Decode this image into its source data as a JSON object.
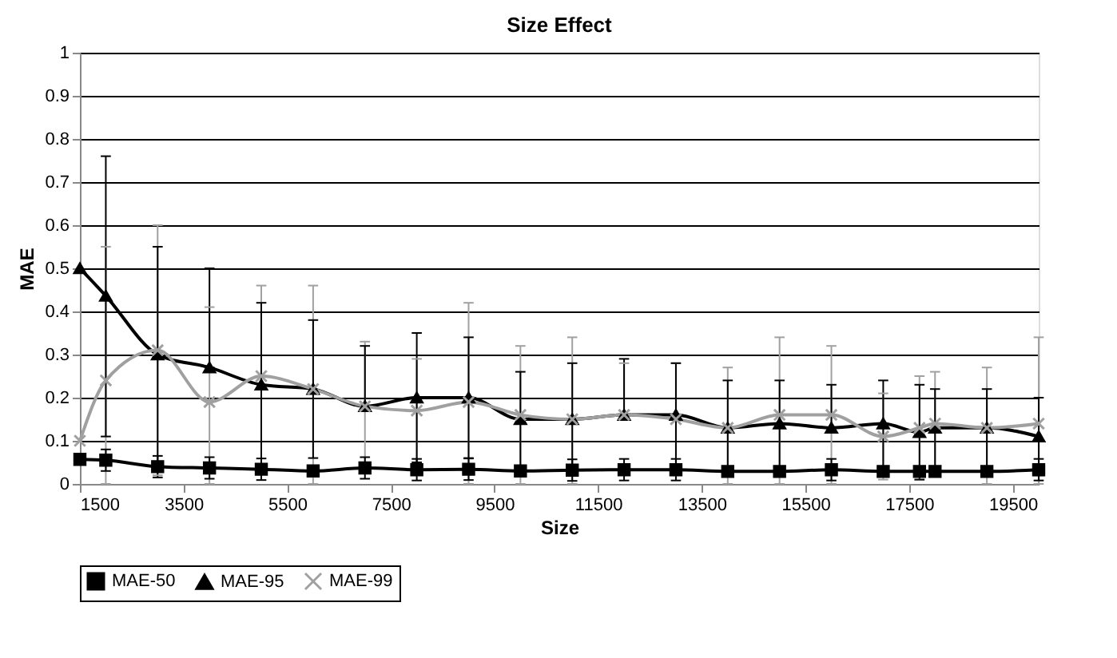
{
  "chart_data": {
    "type": "line",
    "title": "Size Effect",
    "xlabel": "Size",
    "ylabel": "MAE",
    "x": [
      1500,
      2000,
      3000,
      4000,
      5000,
      6000,
      7000,
      8000,
      9000,
      10000,
      11000,
      12000,
      13000,
      14000,
      15000,
      16000,
      17000,
      17700,
      18000,
      19000,
      20000
    ],
    "xlim": [
      1500,
      20000
    ],
    "xticks": [
      1500,
      3500,
      5500,
      7500,
      9500,
      11500,
      13500,
      15500,
      17500,
      19500
    ],
    "ylim": [
      0,
      1
    ],
    "yticks": [
      0,
      0.1,
      0.2,
      0.3,
      0.4,
      0.5,
      0.6,
      0.7,
      0.8,
      0.9,
      1
    ],
    "grid": "y",
    "legend": "bottom",
    "line_style": "solid",
    "series": [
      {
        "name": "MAE-50",
        "color": "#000000",
        "marker": "square",
        "values": [
          0.057,
          0.055,
          0.04,
          0.037,
          0.034,
          0.03,
          0.037,
          0.033,
          0.034,
          0.03,
          0.032,
          0.033,
          0.033,
          0.029,
          0.029,
          0.033,
          0.029,
          0.029,
          0.029,
          0.029,
          0.033
        ],
        "errors": [
          null,
          0.025,
          0.025,
          0.025,
          0.025,
          null,
          0.025,
          0.025,
          0.025,
          null,
          0.025,
          0.025,
          0.025,
          null,
          null,
          0.025,
          null,
          null,
          null,
          null,
          0.025
        ]
      },
      {
        "name": "MAE-95",
        "color": "#000000",
        "marker": "triangle",
        "values": [
          0.5,
          0.436,
          0.3,
          0.27,
          0.23,
          0.22,
          0.18,
          0.2,
          0.2,
          0.15,
          0.15,
          0.16,
          0.16,
          0.13,
          0.14,
          0.13,
          0.14,
          0.12,
          0.13,
          0.13,
          0.11
        ],
        "errors": [
          null,
          [
            0.11,
            0.76
          ],
          [
            0.05,
            0.55
          ],
          [
            0.27,
            0.5
          ],
          [
            0.04,
            0.42
          ],
          [
            0.06,
            0.38
          ],
          [
            0.18,
            0.32
          ],
          [
            0.05,
            0.35
          ],
          [
            0.06,
            0.34
          ],
          [
            0.04,
            0.26
          ],
          [
            0.02,
            0.28
          ],
          [
            0.16,
            0.29
          ],
          [
            0.04,
            0.28
          ],
          [
            0.02,
            0.24
          ],
          [
            0.04,
            0.24
          ],
          [
            0.13,
            0.23
          ],
          [
            0.04,
            0.24
          ],
          [
            0.01,
            0.23
          ],
          [
            0.04,
            0.22
          ],
          [
            0.04,
            0.22
          ],
          [
            0.02,
            0.2
          ]
        ]
      },
      {
        "name": "MAE-99",
        "color": "#a0a0a0",
        "marker": "cross",
        "values": [
          0.1,
          0.24,
          0.31,
          0.19,
          0.25,
          0.22,
          0.18,
          0.17,
          0.19,
          0.16,
          0.15,
          0.16,
          0.15,
          0.13,
          0.16,
          0.16,
          0.11,
          0.13,
          0.14,
          0.13,
          0.14
        ],
        "errors": [
          null,
          [
            0,
            0.55
          ],
          [
            0.02,
            0.6
          ],
          [
            0,
            0.41
          ],
          [
            0.04,
            0.46
          ],
          [
            0,
            0.46
          ],
          [
            0.03,
            0.33
          ],
          [
            0.05,
            0.29
          ],
          [
            0,
            0.42
          ],
          [
            0,
            0.32
          ],
          [
            0,
            0.34
          ],
          [
            0.16,
            0.28
          ],
          [
            0.02,
            0.28
          ],
          [
            0,
            0.27
          ],
          [
            0,
            0.34
          ],
          [
            0,
            0.32
          ],
          [
            0.01,
            0.21
          ],
          [
            0.01,
            0.25
          ],
          [
            0.02,
            0.26
          ],
          [
            0,
            0.27
          ],
          [
            0,
            0.34
          ]
        ]
      }
    ]
  }
}
